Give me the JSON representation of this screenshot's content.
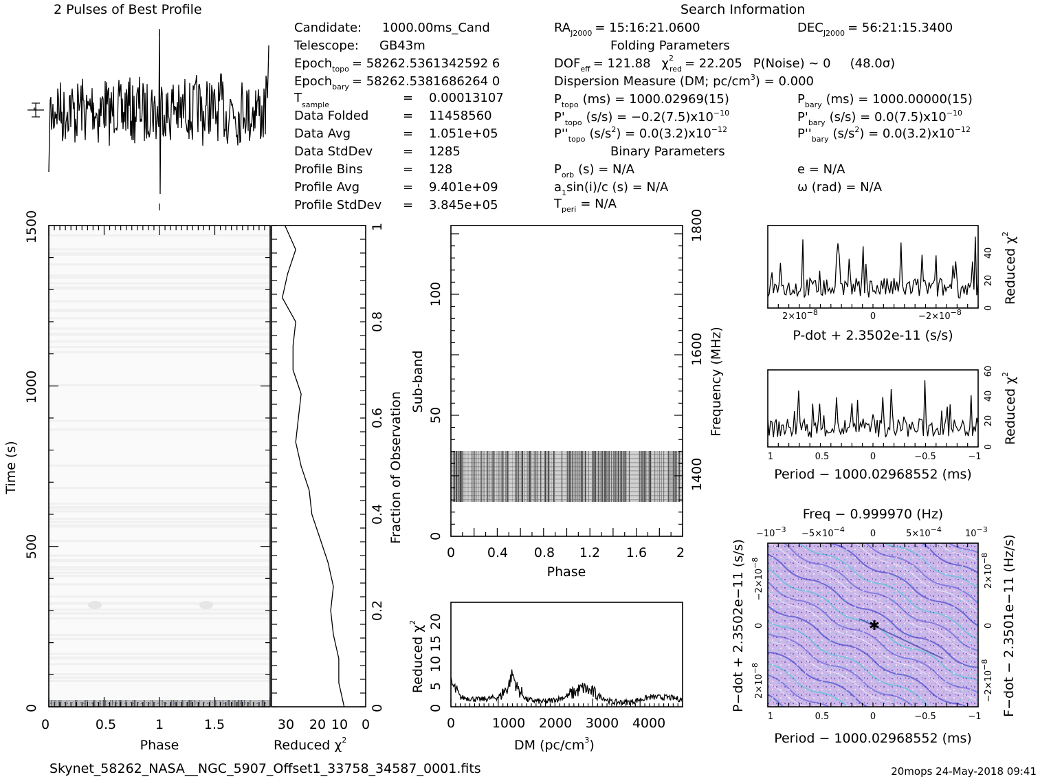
{
  "title_profile": "2 Pulses of Best Profile",
  "title_search": "Search Information",
  "left_info": [
    {
      "k": "Candidate:",
      "v": "1000.00ms_Cand",
      "sub": ""
    },
    {
      "k": "Telescope:",
      "v": "GB43m",
      "sub": ""
    },
    {
      "k": "Epoch",
      "sub": "topo",
      "v": "= 58262.5361342592 6"
    },
    {
      "k": "Epoch",
      "sub": "bary",
      "v": "= 58262.5381686264 0"
    },
    {
      "k": "T",
      "sub": "sample",
      "v": "0.00013107"
    },
    {
      "k": "Data Folded",
      "sub": "",
      "v": "11458560"
    },
    {
      "k": "Data Avg",
      "sub": "",
      "v": "1.051e+05"
    },
    {
      "k": "Data StdDev",
      "sub": "",
      "v": "1285"
    },
    {
      "k": "Profile Bins",
      "sub": "",
      "v": "128"
    },
    {
      "k": "Profile Avg",
      "sub": "",
      "v": "9.401e+09"
    },
    {
      "k": "Profile StdDev",
      "sub": "",
      "v": "3.845e+05"
    }
  ],
  "eq": "=",
  "epoch_topo": "= 58262.5361342592 6",
  "epoch_bary": "= 58262.5381686264 0",
  "ra_label": "RA",
  "ra_sub": "J2000",
  "ra_value": "= 15:16:21.0600",
  "dec_label": "DEC",
  "dec_sub": "J2000",
  "dec_value": "= 56:21:15.3400",
  "folding_title": "Folding Parameters",
  "dof_label": "DOF",
  "dof_sub": "eff",
  "dof_value": "= 121.88",
  "chi_label": "χ",
  "chi_sub": "red",
  "chi_value": "= 22.205",
  "pnoise": "P(Noise) ~ 0",
  "sigma": "(48.0σ)",
  "dm_line": "Dispersion Measure (DM; pc/cm",
  "dm_value": ") = 0.000",
  "ptopo_label": "P",
  "ptopo_sub": "topo",
  "ptopo_value": "(ms) =  1000.02969(15)",
  "pbary_label": "P",
  "pbary_sub": "bary",
  "pbary_value": "(ms) =  1000.00000(15)",
  "pdtopo_value": "(s/s) = −0.2(7.5)x10",
  "pdbary_value": "(s/s) = 0.0(7.5)x10",
  "pddtopo_value": "(s/s",
  "pddtopo_tail": ") = 0.0(3.2)x10",
  "pddbary_value": "(s/s",
  "pddbary_tail": ") = 0.0(3.2)x10",
  "exp_m10": "−10",
  "exp_m12": "−12",
  "binary_title": "Binary Parameters",
  "porb": "(s) = N/A",
  "porb_sub": "orb",
  "e_value": "e = N/A",
  "a1": "a",
  "a1_tail": "sin(i)/c (s) = N/A",
  "omega": "ω (rad) = N/A",
  "tperi": "T",
  "tperi_sub": "peri",
  "tperi_tail": "= N/A",
  "time_axis": {
    "label": "Time (s)",
    "ticks": [
      "0",
      "500",
      "1000",
      "1500"
    ],
    "max": 1500
  },
  "phase_axis": {
    "label": "Phase",
    "ticks": [
      "0",
      "0.5",
      "1",
      "1.5"
    ]
  },
  "redchi_axis": {
    "label": "Reduced χ",
    "ticks": [
      "30",
      "20",
      "10",
      "0"
    ]
  },
  "fraction_axis": {
    "label": "Fraction of Observation",
    "ticks": [
      "0",
      "0.2",
      "0.4",
      "0.6",
      "0.8",
      "1"
    ]
  },
  "subband_axis": {
    "label": "Sub-band",
    "ticks": [
      "0",
      "50",
      "100"
    ]
  },
  "freq_axis": {
    "label": "Frequency (MHz)",
    "ticks": [
      "1400",
      "1600",
      "1800"
    ]
  },
  "phase2_axis": {
    "label": "Phase",
    "ticks": [
      "0",
      "0.4",
      "0.8",
      "1.2",
      "1.6",
      "2"
    ]
  },
  "dm_axis": {
    "label": "DM (pc/cm",
    "ticks": [
      "0",
      "1000",
      "2000",
      "3000",
      "4000"
    ]
  },
  "dm_chi_axis": {
    "label": "Reduced χ",
    "ticks": [
      "0",
      "5",
      "10",
      "15",
      "20"
    ]
  },
  "pdot_panel": {
    "xlabel": "P-dot + 2.3502e-11 (s/s)",
    "ylabel": "Reduced χ",
    "xticks": [
      "2×10",
      "0",
      "−2×10"
    ],
    "xexp": "−8",
    "yticks": [
      "0",
      "20",
      "40"
    ]
  },
  "period_panel": {
    "xlabel": "Period − 1000.02968552 (ms)",
    "ylabel": "Reduced χ",
    "xticks": [
      "1",
      "0.5",
      "0",
      "−0.5",
      "−1"
    ],
    "yticks": [
      "0",
      "20",
      "40",
      "60"
    ]
  },
  "pp_panel": {
    "title": "Freq − 0.999970 (Hz)",
    "xlabel": "Period − 1000.02968552 (ms)",
    "ylabel": "P−dot + 2.3502e−11 (s/s)",
    "rlabel": "F−dot − 2.3501e−11 (Hz/s)",
    "topticks": [
      "−10",
      "−5×10",
      "0",
      "5×10",
      "10"
    ],
    "top_exp": [
      "−3",
      "−4",
      "",
      "−4",
      "−3"
    ],
    "xticks": [
      "1",
      "0.5",
      "0",
      "−0.5",
      "−1"
    ],
    "lticks": [
      "−2×10",
      "0",
      "2×10"
    ],
    "rticks": [
      "2×10",
      "0",
      "−2×10"
    ],
    "exp8": "−8"
  },
  "footer_file": "Skynet_58262_NASA__NGC_5907_Offset1_33758_34587_0001.fits",
  "footer_stamp": "20mops 24-May-2018 09:41",
  "colors": {
    "pp_bg": "#c9b0e6",
    "pp_blue": "#4a4ac8",
    "pp_cyan": "#40c8d8"
  },
  "chart_data": [
    {
      "type": "line",
      "title": "2 Pulses of Best Profile",
      "x": "phase 0-2",
      "note_values": "noisy profile, no clear pulse"
    },
    {
      "type": "heatmap",
      "xlabel": "Phase",
      "ylabel": "Time (s)",
      "xlim": [
        0,
        2
      ],
      "ylim": [
        0,
        1500
      ]
    },
    {
      "type": "line",
      "xlabel": "Reduced χ2",
      "ylabel": "Fraction of Observation",
      "y": [
        0,
        0.05,
        0.1,
        0.15,
        0.2,
        0.25,
        0.3,
        0.35,
        0.4,
        0.45,
        0.5,
        0.55,
        0.6,
        0.65,
        0.7,
        0.75,
        0.8,
        0.85,
        0.9,
        0.95,
        1.0
      ],
      "x": [
        8,
        10,
        10,
        12,
        13,
        12,
        14,
        17,
        20,
        21,
        24,
        26,
        25,
        24,
        27,
        27,
        26,
        31,
        29,
        26,
        30
      ]
    },
    {
      "type": "heatmap",
      "xlabel": "Phase",
      "ylabel": "Sub-band",
      "xlim": [
        0,
        2
      ],
      "ylim": [
        0,
        128
      ],
      "rlabel": "Frequency (MHz)",
      "filled_subbands": [
        15,
        35
      ]
    },
    {
      "type": "line",
      "xlabel": "DM (pc/cm3)",
      "ylabel": "Reduced χ2",
      "xlim": [
        0,
        4900
      ],
      "ylim": [
        0,
        22
      ],
      "x": [
        0,
        200,
        600,
        1000,
        1200,
        1300,
        1400,
        1600,
        2000,
        2400,
        2600,
        2800,
        3000,
        3400,
        3800,
        4200,
        4600,
        4900
      ],
      "y": [
        5,
        2,
        1.5,
        2,
        4,
        7,
        4,
        1.5,
        1,
        2,
        3,
        4,
        3,
        1,
        1,
        2,
        2,
        1.5
      ]
    },
    {
      "type": "line",
      "xlabel": "P-dot + 2.3502e-11 (s/s)",
      "ylabel": "Reduced χ2",
      "ylim": [
        0,
        55
      ]
    },
    {
      "type": "line",
      "xlabel": "Period − 1000.02968552 (ms)",
      "ylabel": "Reduced χ2",
      "ylim": [
        0,
        60
      ],
      "xlim": [
        1,
        -1
      ]
    },
    {
      "type": "heatmap",
      "title": "Freq − 0.999970 (Hz)",
      "xlabel": "Period − 1000.02968552 (ms)",
      "ylabel": "P-dot + 2.3502e-11 (s/s)"
    }
  ]
}
